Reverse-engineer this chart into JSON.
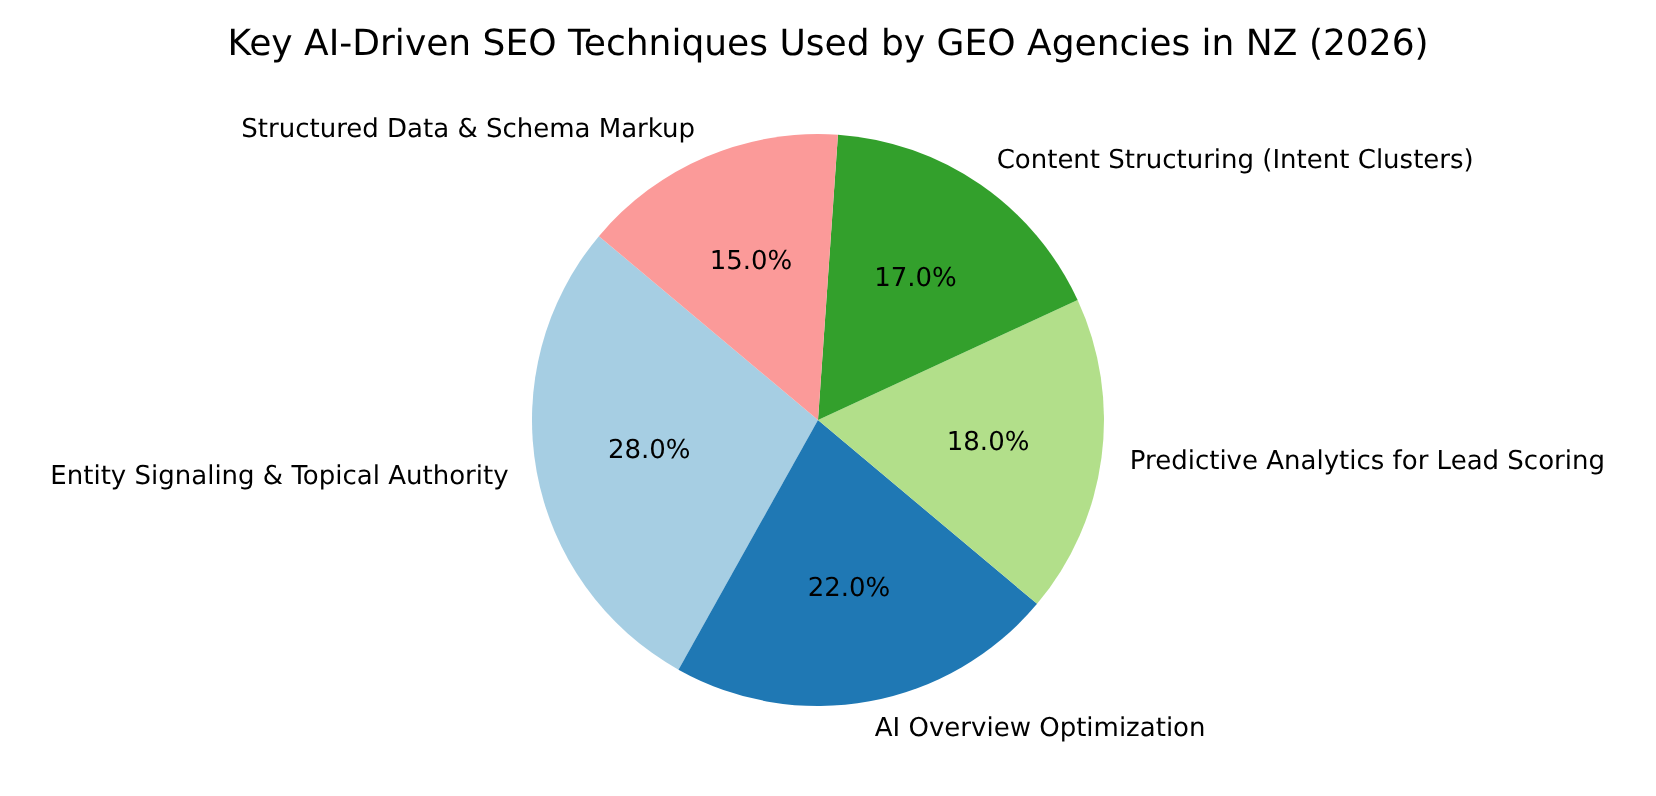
{
  "chart_data": {
    "type": "pie",
    "title": "Key AI-Driven SEO Techniques Used by GEO Agencies in NZ (2026)",
    "categories": [
      "Entity Signaling & Topical Authority",
      "AI Overview Optimization",
      "Predictive Analytics for Lead Scoring",
      "Content Structuring (Intent Clusters)",
      "Structured Data & Schema Markup"
    ],
    "values": [
      28,
      22,
      18,
      17,
      15
    ],
    "colors": [
      "#a6cee3",
      "#1f78b4",
      "#b2df8a",
      "#33a02c",
      "#fb9a99"
    ],
    "value_labels": [
      "28.0%",
      "22.0%",
      "18.0%",
      "17.0%",
      "15.0%"
    ]
  }
}
